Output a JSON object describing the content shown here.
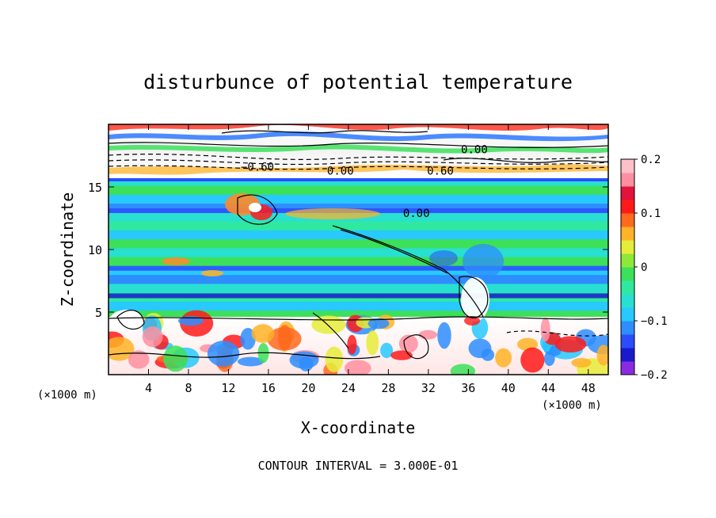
{
  "chart_data": {
    "type": "heatmap",
    "title": "disturbunce of potential temperature",
    "xlabel": "X-coordinate",
    "ylabel": "Z-coordinate",
    "x_unit": "(×1000 m)",
    "z_unit": "(×1000 m)",
    "xlim": [
      0,
      50
    ],
    "ylim": [
      0,
      20
    ],
    "x_ticks": [
      4,
      8,
      12,
      16,
      20,
      24,
      28,
      32,
      36,
      40,
      44,
      48
    ],
    "y_ticks": [
      5,
      10,
      15
    ],
    "colorbar": {
      "range": [
        -0.2,
        0.2
      ],
      "ticks": [
        {
          "value": 0.2,
          "label": "0.2"
        },
        {
          "value": 0.1,
          "label": "0.1"
        },
        {
          "value": 0,
          "label": "0"
        },
        {
          "value": -0.1,
          "label": "−0.1"
        },
        {
          "value": -0.2,
          "label": "−0.2"
        }
      ],
      "colors": [
        "#8a2be2",
        "#1a1acd",
        "#2b4cff",
        "#2e8dff",
        "#27c9ff",
        "#28e0d0",
        "#30e8a0",
        "#3ce05a",
        "#8ee83a",
        "#e6ec3a",
        "#ffb327",
        "#ff6a1e",
        "#ff1a1a",
        "#e0143c",
        "#ff8fa0",
        "#ffc0c8"
      ]
    },
    "contour_labels": [
      {
        "x": 14.9,
        "z": 16.6,
        "label": "−0.60"
      },
      {
        "x": 23.2,
        "z": 16.3,
        "label": "0.00"
      },
      {
        "x": 30.8,
        "z": 12.9,
        "label": "0.00"
      },
      {
        "x": 36.6,
        "z": 18.0,
        "label": "0.00"
      },
      {
        "x": 33.2,
        "z": 16.3,
        "label": "0.60"
      }
    ],
    "contour_interval_text": "CONTOUR INTERVAL = 3.000E-01"
  }
}
